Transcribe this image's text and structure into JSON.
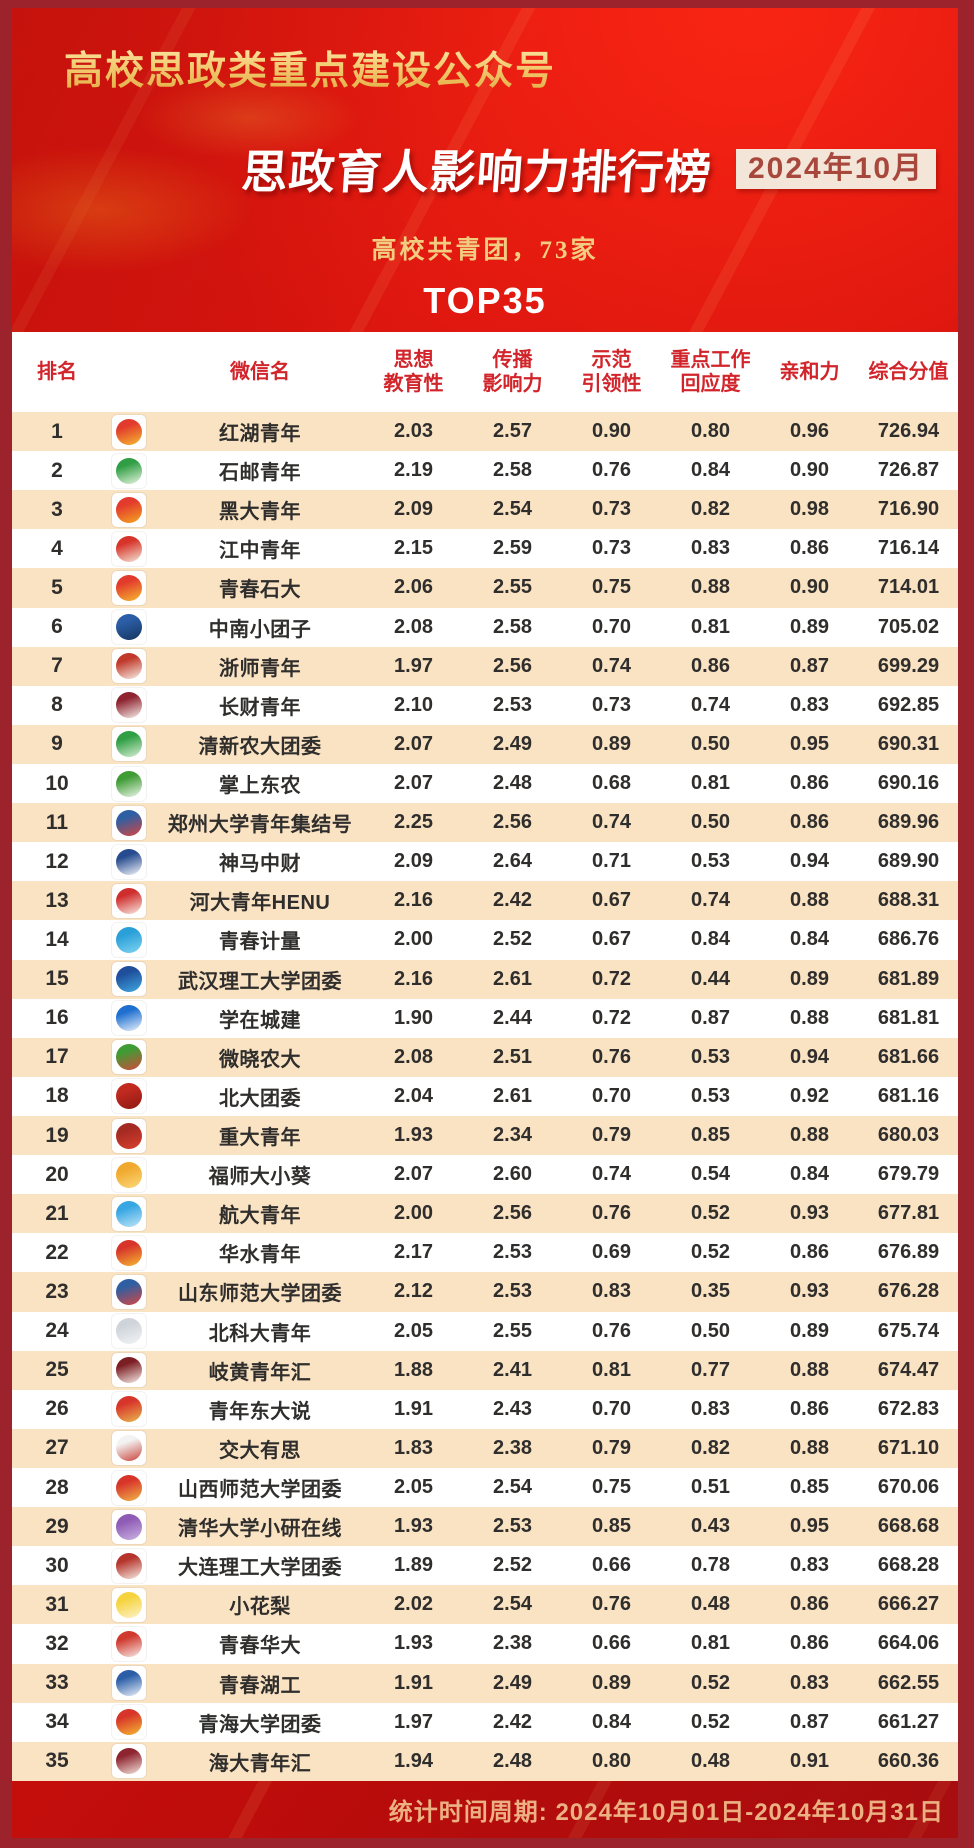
{
  "header": {
    "top_title": "高校思政类重点建设公众号",
    "main_title": "思政育人影响力排行榜",
    "date_badge": "2024年10月",
    "subtitle": "高校共青团，73家",
    "top_label": "TOP35"
  },
  "footer": {
    "stats_period": "统计时间周期: 2024年10月01日-2024年10月31日"
  },
  "colors": {
    "background_red": "#d2110d",
    "frame_maroon": "#9c232b",
    "row_beige": "#fae3c3",
    "header_text_red": "#d1252b",
    "cell_text": "#2f2e2c",
    "gold": "#f3cd74",
    "footer_text": "#ecb183",
    "badge_bg": "#f3e5d8",
    "badge_text": "#a8473c"
  },
  "chart_data": {
    "type": "table",
    "title": "思政育人影响力排行榜",
    "subtitle": "高校共青团，73家",
    "period": "2024年10月01日-2024年10月31日",
    "columns": [
      "排名",
      "微信名",
      "思想\n教育性",
      "传播\n影响力",
      "示范\n引领性",
      "重点工作\n回应度",
      "亲和力",
      "综合分值"
    ],
    "rows": [
      {
        "rank": "1",
        "name": "红湖青年",
        "icon": [
          "#e23a2c",
          "#f5b931"
        ],
        "scores": [
          "2.03",
          "2.57",
          "0.90",
          "0.80",
          "0.96",
          "726.94"
        ]
      },
      {
        "rank": "2",
        "name": "石邮青年",
        "icon": [
          "#2f9e44",
          "#e8f5e0"
        ],
        "scores": [
          "2.19",
          "2.58",
          "0.76",
          "0.84",
          "0.90",
          "726.87"
        ]
      },
      {
        "rank": "3",
        "name": "黑大青年",
        "icon": [
          "#e23a2c",
          "#f5a623"
        ],
        "scores": [
          "2.09",
          "2.54",
          "0.73",
          "0.82",
          "0.98",
          "716.90"
        ]
      },
      {
        "rank": "4",
        "name": "江中青年",
        "icon": [
          "#d7342a",
          "#f3e6d8"
        ],
        "scores": [
          "2.15",
          "2.59",
          "0.73",
          "0.83",
          "0.86",
          "716.14"
        ]
      },
      {
        "rank": "5",
        "name": "青春石大",
        "icon": [
          "#e23a2c",
          "#f5b931"
        ],
        "scores": [
          "2.06",
          "2.55",
          "0.75",
          "0.88",
          "0.90",
          "714.01"
        ]
      },
      {
        "rank": "6",
        "name": "中南小团子",
        "icon": [
          "#2b5ea7",
          "#16355e"
        ],
        "scores": [
          "2.08",
          "2.58",
          "0.70",
          "0.81",
          "0.89",
          "705.02"
        ]
      },
      {
        "rank": "7",
        "name": "浙师青年",
        "icon": [
          "#c0392b",
          "#f8efe6"
        ],
        "scores": [
          "1.97",
          "2.56",
          "0.74",
          "0.86",
          "0.87",
          "699.29"
        ]
      },
      {
        "rank": "8",
        "name": "长财青年",
        "icon": [
          "#8e2430",
          "#f7f0ea"
        ],
        "scores": [
          "2.10",
          "2.53",
          "0.73",
          "0.74",
          "0.83",
          "692.85"
        ]
      },
      {
        "rank": "9",
        "name": "清新农大团委",
        "icon": [
          "#2f9e44",
          "#d9efd5"
        ],
        "scores": [
          "2.07",
          "2.49",
          "0.89",
          "0.50",
          "0.95",
          "690.31"
        ]
      },
      {
        "rank": "10",
        "name": "掌上东农",
        "icon": [
          "#3f9c35",
          "#eef6ec"
        ],
        "scores": [
          "2.07",
          "2.48",
          "0.68",
          "0.81",
          "0.86",
          "690.16"
        ]
      },
      {
        "rank": "11",
        "name": "郑州大学青年集结号",
        "icon": [
          "#2e5fa3",
          "#d64541"
        ],
        "scores": [
          "2.25",
          "2.56",
          "0.74",
          "0.50",
          "0.86",
          "689.96"
        ]
      },
      {
        "rank": "12",
        "name": "神马中财",
        "icon": [
          "#274b8f",
          "#f4f6fb"
        ],
        "scores": [
          "2.09",
          "2.64",
          "0.71",
          "0.53",
          "0.94",
          "689.90"
        ]
      },
      {
        "rank": "13",
        "name": "河大青年HENU",
        "icon": [
          "#cf2e2e",
          "#f9e9e0"
        ],
        "scores": [
          "2.16",
          "2.42",
          "0.67",
          "0.74",
          "0.88",
          "688.31"
        ]
      },
      {
        "rank": "14",
        "name": "青春计量",
        "icon": [
          "#2a9fd8",
          "#7fd4f0"
        ],
        "scores": [
          "2.00",
          "2.52",
          "0.67",
          "0.84",
          "0.84",
          "686.76"
        ]
      },
      {
        "rank": "15",
        "name": "武汉理工大学团委",
        "icon": [
          "#1f4e9c",
          "#3fa9e0"
        ],
        "scores": [
          "2.16",
          "2.61",
          "0.72",
          "0.44",
          "0.89",
          "681.89"
        ]
      },
      {
        "rank": "16",
        "name": "学在城建",
        "icon": [
          "#1f6fd0",
          "#eaf3fc"
        ],
        "scores": [
          "1.90",
          "2.44",
          "0.72",
          "0.87",
          "0.88",
          "681.81"
        ]
      },
      {
        "rank": "17",
        "name": "微晓农大",
        "icon": [
          "#3f9c35",
          "#d24a3a"
        ],
        "scores": [
          "2.08",
          "2.51",
          "0.76",
          "0.53",
          "0.94",
          "681.66"
        ]
      },
      {
        "rank": "18",
        "name": "北大团委",
        "icon": [
          "#c22a20",
          "#8e1a12"
        ],
        "scores": [
          "2.04",
          "2.61",
          "0.70",
          "0.53",
          "0.92",
          "681.16"
        ]
      },
      {
        "rank": "19",
        "name": "重大青年",
        "icon": [
          "#a52a21",
          "#d8402f"
        ],
        "scores": [
          "1.93",
          "2.34",
          "0.79",
          "0.85",
          "0.88",
          "680.03"
        ]
      },
      {
        "rank": "20",
        "name": "福师大小葵",
        "icon": [
          "#f0a92e",
          "#fbd87a"
        ],
        "scores": [
          "2.07",
          "2.60",
          "0.74",
          "0.54",
          "0.84",
          "679.79"
        ]
      },
      {
        "rank": "21",
        "name": "航大青年",
        "icon": [
          "#37a6e3",
          "#bfe6f7"
        ],
        "scores": [
          "2.00",
          "2.56",
          "0.76",
          "0.52",
          "0.93",
          "677.81"
        ]
      },
      {
        "rank": "22",
        "name": "华水青年",
        "icon": [
          "#d7342a",
          "#f5b931"
        ],
        "scores": [
          "2.17",
          "2.53",
          "0.69",
          "0.52",
          "0.86",
          "676.89"
        ]
      },
      {
        "rank": "23",
        "name": "山东师范大学团委",
        "icon": [
          "#2e5fa3",
          "#d64541"
        ],
        "scores": [
          "2.12",
          "2.53",
          "0.83",
          "0.35",
          "0.93",
          "676.28"
        ]
      },
      {
        "rank": "24",
        "name": "北科大青年",
        "icon": [
          "#cfd4da",
          "#f2f4f6"
        ],
        "scores": [
          "2.05",
          "2.55",
          "0.76",
          "0.50",
          "0.89",
          "675.74"
        ]
      },
      {
        "rank": "25",
        "name": "岐黄青年汇",
        "icon": [
          "#7c1f24",
          "#f6ede7"
        ],
        "scores": [
          "1.88",
          "2.41",
          "0.81",
          "0.77",
          "0.88",
          "674.47"
        ]
      },
      {
        "rank": "26",
        "name": "青年东大说",
        "icon": [
          "#d7342a",
          "#e9b84f"
        ],
        "scores": [
          "1.91",
          "2.43",
          "0.70",
          "0.83",
          "0.86",
          "672.83"
        ]
      },
      {
        "rank": "27",
        "name": "交大有思",
        "icon": [
          "#f3f3f3",
          "#c9433a"
        ],
        "scores": [
          "1.83",
          "2.38",
          "0.79",
          "0.82",
          "0.88",
          "671.10"
        ]
      },
      {
        "rank": "28",
        "name": "山西师范大学团委",
        "icon": [
          "#d7342a",
          "#f0b64a"
        ],
        "scores": [
          "2.05",
          "2.54",
          "0.75",
          "0.51",
          "0.85",
          "670.06"
        ]
      },
      {
        "rank": "29",
        "name": "清华大学小研在线",
        "icon": [
          "#8e5bb5",
          "#cbb3e3"
        ],
        "scores": [
          "1.93",
          "2.53",
          "0.85",
          "0.43",
          "0.95",
          "668.68"
        ]
      },
      {
        "rank": "30",
        "name": "大连理工大学团委",
        "icon": [
          "#b5342b",
          "#f5ece4"
        ],
        "scores": [
          "1.89",
          "2.52",
          "0.66",
          "0.78",
          "0.83",
          "668.28"
        ]
      },
      {
        "rank": "31",
        "name": "小花梨",
        "icon": [
          "#f5d33f",
          "#fdf3c9"
        ],
        "scores": [
          "2.02",
          "2.54",
          "0.76",
          "0.48",
          "0.86",
          "666.27"
        ]
      },
      {
        "rank": "32",
        "name": "青春华大",
        "icon": [
          "#d0392e",
          "#f7eae6"
        ],
        "scores": [
          "1.93",
          "2.38",
          "0.66",
          "0.81",
          "0.86",
          "664.06"
        ]
      },
      {
        "rank": "33",
        "name": "青春湖工",
        "icon": [
          "#2b5ea7",
          "#e8f0fa"
        ],
        "scores": [
          "1.91",
          "2.49",
          "0.89",
          "0.52",
          "0.83",
          "662.55"
        ]
      },
      {
        "rank": "34",
        "name": "青海大学团委",
        "icon": [
          "#d7342a",
          "#f5b931"
        ],
        "scores": [
          "1.97",
          "2.42",
          "0.84",
          "0.52",
          "0.87",
          "661.27"
        ]
      },
      {
        "rank": "35",
        "name": "海大青年汇",
        "icon": [
          "#8e2430",
          "#f3e3da"
        ],
        "scores": [
          "1.94",
          "2.48",
          "0.80",
          "0.48",
          "0.91",
          "660.36"
        ]
      }
    ]
  }
}
